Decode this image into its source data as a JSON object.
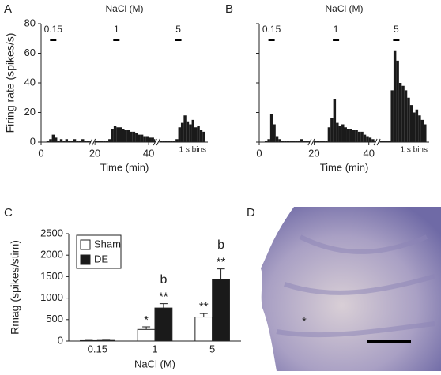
{
  "chart_data": [
    {
      "type": "histogram",
      "panel_label": "A",
      "title": "NaCl (M)",
      "ylabel": "Firing rate (spikes/s)",
      "xlabel": "Time (min)",
      "annotation": "1 s bins",
      "color": "#1a1a1a",
      "show_ytick_labels": true,
      "ylim": [
        0,
        80
      ],
      "yticks": [
        0,
        20,
        40,
        60,
        80
      ],
      "xlim": [
        0,
        62
      ],
      "xticks": [
        0,
        20,
        40
      ],
      "x_breaks": [
        19,
        43
      ],
      "stimuli": [
        {
          "label": "0.15",
          "time": 4.5
        },
        {
          "label": "1",
          "time": 28
        },
        {
          "label": "5",
          "time": 51
        }
      ],
      "bins": [
        2,
        3,
        4,
        5,
        6,
        7,
        8,
        9,
        10,
        11,
        12,
        13,
        14,
        15,
        16,
        17,
        18,
        19,
        20,
        21,
        22,
        23,
        24,
        25,
        26,
        27,
        28,
        29,
        30,
        31,
        32,
        33,
        34,
        35,
        36,
        37,
        38,
        39,
        40,
        41,
        42,
        43,
        44,
        45,
        46,
        47,
        48,
        49,
        50,
        51,
        52,
        53,
        54,
        55,
        56,
        57,
        58,
        59,
        60,
        61
      ],
      "values": [
        1,
        2,
        5,
        3,
        1,
        2,
        1,
        2,
        1,
        1,
        2,
        1,
        1,
        2,
        1,
        1,
        1,
        1,
        1,
        1,
        1,
        1,
        1,
        2,
        9,
        11,
        10,
        10,
        9,
        8,
        8,
        7,
        7,
        6,
        5,
        5,
        4,
        4,
        3,
        3,
        2,
        1,
        1,
        1,
        1,
        1,
        1,
        1,
        2,
        10,
        13,
        18,
        14,
        12,
        15,
        10,
        11,
        8,
        7
      ]
    },
    {
      "type": "histogram",
      "panel_label": "B",
      "title": "NaCl (M)",
      "xlabel": "Time (min)",
      "annotation": "1 s bins",
      "color": "#1a1a1a",
      "show_ytick_labels": false,
      "ylim": [
        0,
        80
      ],
      "yticks": [
        0,
        20,
        40,
        60,
        80
      ],
      "xlim": [
        0,
        62
      ],
      "xticks": [
        0,
        20,
        40
      ],
      "x_breaks": [
        19,
        43
      ],
      "stimuli": [
        {
          "label": "0.15",
          "time": 4.5
        },
        {
          "label": "1",
          "time": 28
        },
        {
          "label": "5",
          "time": 50
        }
      ],
      "bins": [
        2,
        3,
        4,
        5,
        6,
        7,
        8,
        9,
        10,
        11,
        12,
        13,
        14,
        15,
        16,
        17,
        18,
        19,
        20,
        21,
        22,
        23,
        24,
        25,
        26,
        27,
        28,
        29,
        30,
        31,
        32,
        33,
        34,
        35,
        36,
        37,
        38,
        39,
        40,
        41,
        42,
        43,
        44,
        45,
        46,
        47,
        48,
        49,
        50,
        51,
        52,
        53,
        54,
        55,
        56,
        57,
        58,
        59,
        60,
        61
      ],
      "values": [
        1,
        2,
        19,
        12,
        4,
        2,
        1,
        1,
        1,
        1,
        1,
        1,
        1,
        2,
        1,
        1,
        1,
        1,
        1,
        1,
        1,
        1,
        1,
        10,
        16,
        29,
        13,
        11,
        12,
        10,
        9,
        9,
        8,
        8,
        7,
        7,
        5,
        4,
        3,
        2,
        1,
        1,
        1,
        1,
        1,
        1,
        35,
        62,
        55,
        40,
        38,
        35,
        30,
        25,
        20,
        22,
        18,
        15,
        12
      ]
    },
    {
      "type": "bar",
      "panel_label": "C",
      "ylabel": "Rmag (spikes/stim)",
      "xlabel": "NaCl (M)",
      "categories": [
        "0.15",
        "1",
        "5"
      ],
      "ylim": [
        0,
        2500
      ],
      "yticks": [
        0,
        500,
        1000,
        1500,
        2000,
        2500
      ],
      "legend": "top-left",
      "series": [
        {
          "name": "Sham",
          "color": "#ffffff",
          "values": [
            10,
            270,
            560
          ],
          "errors": [
            5,
            60,
            80
          ],
          "marks": [
            null,
            "*",
            "**"
          ],
          "letters": [
            null,
            null,
            null
          ]
        },
        {
          "name": "DE",
          "color": "#1a1a1a",
          "values": [
            15,
            770,
            1440
          ],
          "errors": [
            5,
            100,
            240
          ],
          "marks": [
            null,
            "**",
            "**"
          ],
          "letters": [
            null,
            "b",
            "b"
          ]
        }
      ]
    }
  ],
  "image": {
    "panel_label": "D",
    "annotation": "*"
  }
}
